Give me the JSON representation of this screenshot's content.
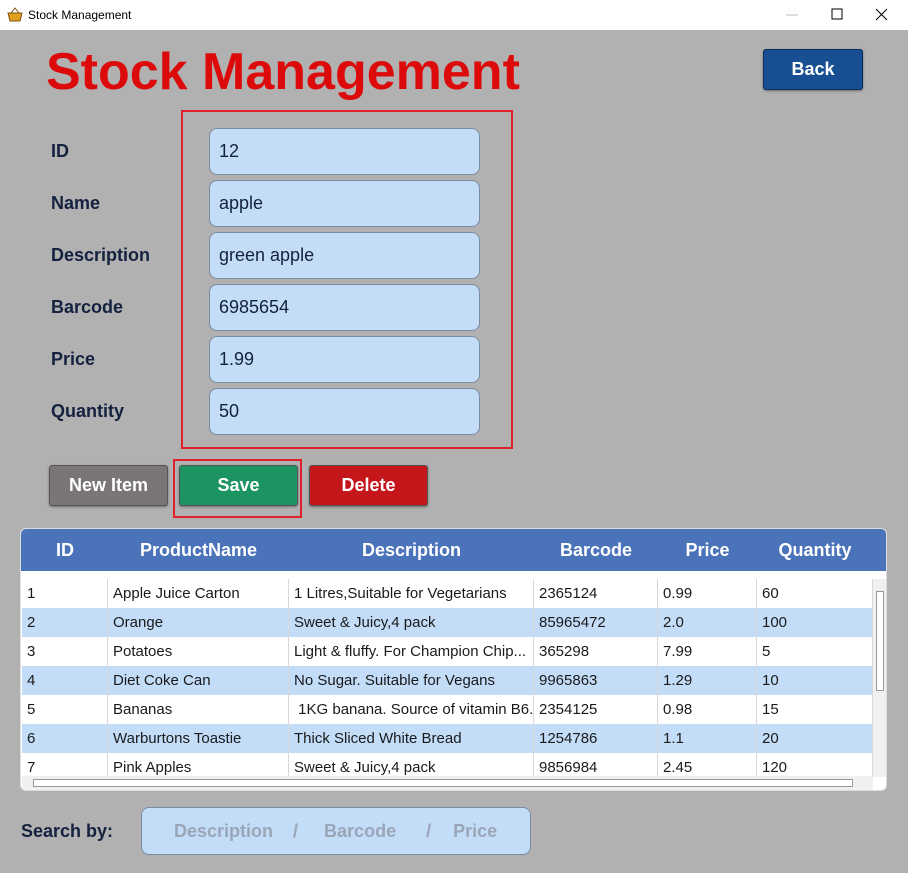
{
  "window": {
    "title": "Stock Management"
  },
  "header": {
    "title": "Stock Management",
    "back_button": "Back"
  },
  "form": {
    "fields": [
      {
        "label": "ID",
        "value": "12"
      },
      {
        "label": "Name",
        "value": "apple"
      },
      {
        "label": "Description",
        "value": "green apple"
      },
      {
        "label": "Barcode",
        "value": "6985654"
      },
      {
        "label": "Price",
        "value": "1.99"
      },
      {
        "label": "Quantity",
        "value": "50"
      }
    ]
  },
  "buttons": [
    "New Item",
    "Save",
    "Delete"
  ],
  "table": {
    "columns": [
      "ID",
      "ProductName",
      "Description",
      "Barcode",
      "Price",
      "Quantity"
    ],
    "rows": [
      [
        "1",
        "Apple Juice Carton",
        "1 Litres,Suitable for Vegetarians",
        "2365124",
        "0.99",
        "60"
      ],
      [
        "2",
        "Orange",
        "Sweet & Juicy,4 pack",
        "85965472",
        "2.0",
        "100"
      ],
      [
        "3",
        "Potatoes",
        "Light & fluffy. For Champion Chip...",
        "365298",
        "7.99",
        "5"
      ],
      [
        "4",
        "Diet Coke Can",
        "No Sugar. Suitable for Vegans",
        "9965863",
        "1.29",
        "10"
      ],
      [
        "5",
        "Bananas",
        " 1KG banana. Source of vitamin B6.",
        "2354125",
        "0.98",
        "15"
      ],
      [
        "6",
        "Warburtons Toastie",
        "Thick Sliced White Bread",
        "1254786",
        "1.1",
        "20"
      ],
      [
        "7",
        "Pink Apples",
        "Sweet & Juicy,4 pack",
        "9856984",
        "2.45",
        "120"
      ]
    ]
  },
  "search": {
    "label": "Search by:",
    "placeholder": [
      "Description",
      "/",
      "Barcode",
      "/",
      "Price"
    ]
  }
}
